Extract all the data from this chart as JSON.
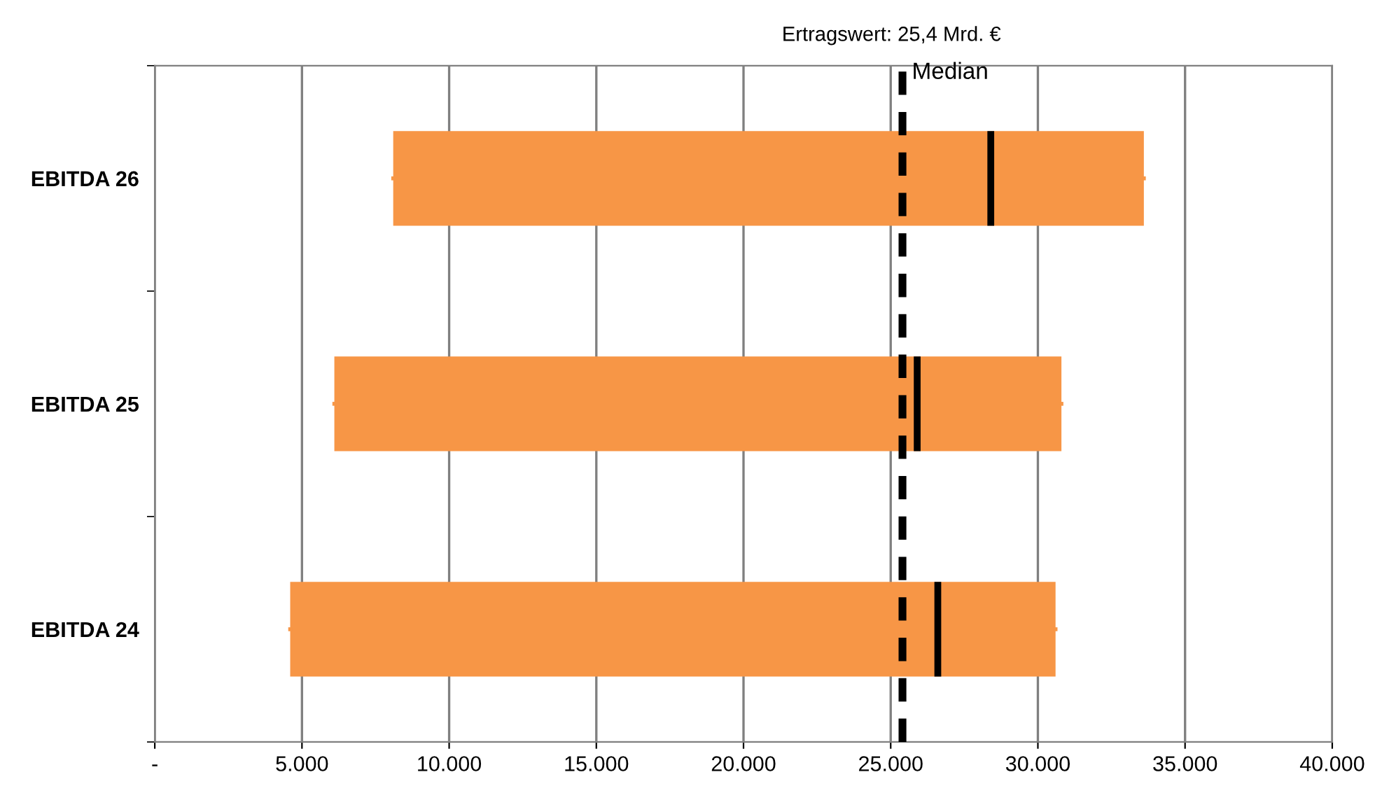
{
  "chart_data": {
    "type": "box",
    "orientation": "horizontal",
    "title": "Ertragswert: 25,4 Mrd. €",
    "categories": [
      "EBITDA 26",
      "EBITDA 25",
      "EBITDA 24"
    ],
    "series": [
      {
        "color": "#f79646",
        "boxes": [
          {
            "low": 8100,
            "q1": 8100,
            "median": 28400,
            "q3": 33600,
            "high": 33600
          },
          {
            "low": 6100,
            "q1": 6100,
            "median": 25900,
            "q3": 30800,
            "high": 30800
          },
          {
            "low": 4600,
            "q1": 4600,
            "median": 26600,
            "q3": 30600,
            "high": 30600
          }
        ]
      }
    ],
    "xlim": [
      0,
      40000
    ],
    "xticks": [
      {
        "value": 0,
        "label": "-"
      },
      {
        "value": 5000,
        "label": "5.000"
      },
      {
        "value": 10000,
        "label": "10.000"
      },
      {
        "value": 15000,
        "label": "15.000"
      },
      {
        "value": 20000,
        "label": "20.000"
      },
      {
        "value": 25000,
        "label": "25.000"
      },
      {
        "value": 30000,
        "label": "30.000"
      },
      {
        "value": 35000,
        "label": "35.000"
      },
      {
        "value": 40000,
        "label": "40.000"
      }
    ],
    "grid": "x",
    "ref_lines": [
      {
        "axis": "x",
        "value": 25400,
        "label": "Median",
        "color": "#000000",
        "line_style": "dashed"
      }
    ]
  }
}
